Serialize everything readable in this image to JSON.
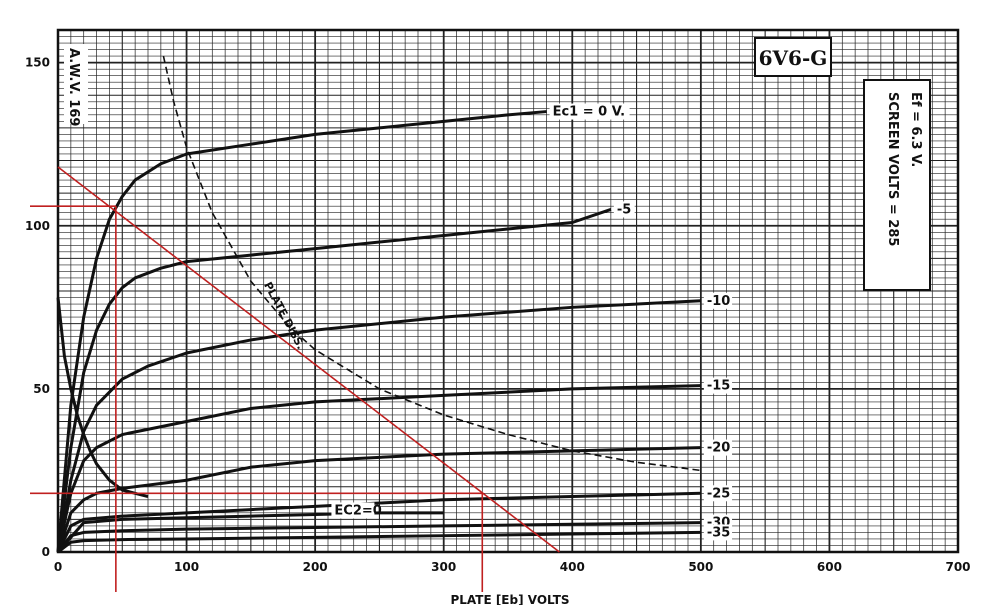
{
  "chart_data": {
    "type": "line",
    "title": "6V6-G",
    "side_label": "A.W.V. 169",
    "conditions": [
      "Ef = 6.3 V.",
      "SCREEN VOLTS = 285"
    ],
    "xlabel": "PLATE [Eb] VOLTS",
    "ylabel": "",
    "xlim": [
      0,
      700
    ],
    "ylim": [
      0,
      160
    ],
    "x_ticks": [
      "0",
      "100",
      "200",
      "300",
      "400",
      "500",
      "600",
      "700"
    ],
    "y_ticks": [
      "0",
      "50",
      "100",
      "150"
    ],
    "grid": true,
    "series": [
      {
        "name": "Ec1 = 0 V.",
        "label": "Ec1 = 0 V.",
        "kind": "curve",
        "x": [
          0,
          10,
          20,
          30,
          40,
          50,
          60,
          80,
          100,
          150,
          200,
          250,
          300,
          350,
          380
        ],
        "y": [
          0,
          45,
          72,
          90,
          102,
          109,
          114,
          119,
          122,
          125,
          128,
          130,
          132,
          134,
          135
        ]
      },
      {
        "name": "-5",
        "label": "-5",
        "kind": "curve",
        "x": [
          0,
          10,
          20,
          30,
          40,
          50,
          60,
          80,
          100,
          150,
          200,
          300,
          400,
          430
        ],
        "y": [
          0,
          32,
          55,
          68,
          76,
          81,
          84,
          87,
          89,
          91,
          93,
          97,
          101,
          105
        ]
      },
      {
        "name": "-10",
        "label": "-10",
        "kind": "curve",
        "x": [
          0,
          10,
          20,
          30,
          50,
          70,
          100,
          150,
          200,
          300,
          400,
          500
        ],
        "y": [
          0,
          22,
          37,
          45,
          53,
          57,
          61,
          65,
          68,
          72,
          75,
          77
        ]
      },
      {
        "name": "-15",
        "label": "-15",
        "kind": "curve",
        "x": [
          0,
          10,
          20,
          30,
          50,
          100,
          150,
          200,
          300,
          400,
          500
        ],
        "y": [
          0,
          18,
          28,
          32,
          36,
          40,
          44,
          46,
          48,
          50,
          51
        ]
      },
      {
        "name": "-20",
        "label": "-20",
        "kind": "curve",
        "x": [
          0,
          10,
          20,
          30,
          50,
          100,
          150,
          200,
          250,
          300,
          400,
          500
        ],
        "y": [
          0,
          12,
          16,
          18,
          19.5,
          22,
          26,
          28,
          29,
          30,
          31,
          32
        ]
      },
      {
        "name": "-25",
        "label": "-25",
        "kind": "curve",
        "x": [
          0,
          10,
          20,
          50,
          100,
          150,
          200,
          300,
          400,
          500
        ],
        "y": [
          0,
          8,
          10,
          11,
          12,
          13,
          14,
          16,
          17,
          18
        ]
      },
      {
        "name": "-30",
        "label": "-30",
        "kind": "curve",
        "x": [
          0,
          10,
          20,
          50,
          100,
          200,
          300,
          400,
          500
        ],
        "y": [
          0,
          5,
          6,
          6.5,
          7,
          7.5,
          8,
          8.5,
          9
        ]
      },
      {
        "name": "-35",
        "label": "-35",
        "kind": "curve",
        "x": [
          0,
          10,
          20,
          50,
          100,
          200,
          300,
          400,
          500
        ],
        "y": [
          0,
          3,
          3.5,
          3.8,
          4,
          4.5,
          5,
          5.5,
          6
        ]
      },
      {
        "name": "Ec2 = 0",
        "label": "EC2=0",
        "kind": "curve",
        "x": [
          0,
          20,
          50,
          100,
          150,
          200,
          250,
          300
        ],
        "y": [
          0,
          9,
          10,
          10.5,
          11,
          11.5,
          12,
          12
        ]
      },
      {
        "name": "PLATE DISSIPATION",
        "label": "PLATE DISS.",
        "kind": "dashed",
        "x": [
          82,
          90,
          100,
          120,
          150,
          180,
          200,
          250,
          300,
          350,
          400,
          450,
          500
        ],
        "y": [
          152,
          138,
          124,
          104,
          83,
          69,
          62,
          50,
          42,
          36,
          31,
          27.5,
          25
        ]
      },
      {
        "name": "screen current",
        "label": "",
        "kind": "curve",
        "x": [
          0,
          5,
          10,
          15,
          20,
          25,
          30,
          40,
          50,
          60,
          70
        ],
        "y": [
          78,
          60,
          50,
          42,
          36,
          31,
          27,
          22,
          19,
          18,
          17
        ]
      },
      {
        "name": "load line",
        "label": "",
        "kind": "red",
        "x": [
          0,
          390
        ],
        "y": [
          118,
          0
        ]
      }
    ],
    "reference_lines": [
      {
        "kind": "vertical",
        "x": 45,
        "y_from": 0,
        "y_to": 106
      },
      {
        "kind": "horizontal",
        "y": 106,
        "x_from": 0,
        "x_to": 45
      },
      {
        "kind": "vertical",
        "x": 330,
        "y_from": 0,
        "y_to": 18
      },
      {
        "kind": "horizontal",
        "y": 18,
        "x_from": 0,
        "x_to": 330
      }
    ]
  }
}
